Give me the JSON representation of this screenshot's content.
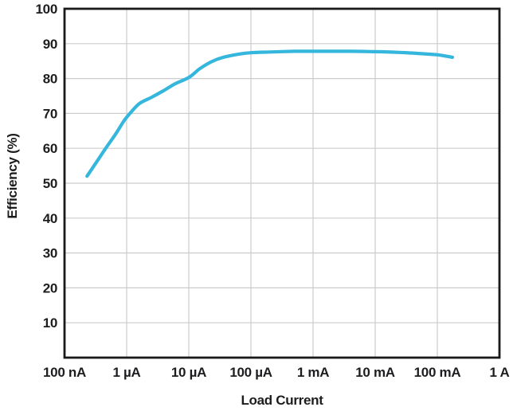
{
  "chart": {
    "frame_color": "#1a1a1a",
    "grid_color": "#cccccc",
    "line_color": "#35b6dd",
    "text_color": "#1d1d1f",
    "background_color": "#ffffff"
  },
  "chart_data": {
    "type": "line",
    "title": "",
    "xlabel": "Load Current",
    "ylabel": "Efficiency (%)",
    "x_scale": "log",
    "xlim": [
      1e-07,
      1
    ],
    "ylim": [
      0,
      100
    ],
    "grid": true,
    "legend_position": "none",
    "x_tick_values": [
      1e-07,
      1e-06,
      1e-05,
      0.0001,
      0.001,
      0.01,
      0.1,
      1
    ],
    "x_tick_labels": [
      "100 nA",
      "1 µA",
      "10 µA",
      "100 µA",
      "1 mA",
      "10 mA",
      "100 mA",
      "1 A"
    ],
    "y_tick_values": [
      100,
      90,
      80,
      70,
      60,
      50,
      40,
      30,
      20,
      10
    ],
    "y_tick_labels": [
      "100",
      "90",
      "80",
      "70",
      "60",
      "50",
      "40",
      "30",
      "20",
      "10"
    ],
    "series": [
      {
        "name": "Efficiency",
        "color": "#35b6dd",
        "x": [
          2.3e-07,
          3.2e-07,
          4.6e-07,
          6.6e-07,
          9e-07,
          1.13e-06,
          1.6e-06,
          2.5e-06,
          4e-06,
          6e-06,
          1e-05,
          1.5e-05,
          2.3e-05,
          3.6e-05,
          6.4e-05,
          0.0001,
          0.0002,
          0.0005,
          0.001,
          0.004,
          0.01,
          0.024,
          0.049,
          0.1,
          0.14,
          0.175
        ],
        "y": [
          52,
          55.8,
          60,
          64,
          67.8,
          70,
          72.8,
          74.6,
          76.6,
          78.5,
          80.3,
          82.8,
          84.8,
          86.1,
          87,
          87.4,
          87.6,
          87.8,
          87.8,
          87.8,
          87.7,
          87.5,
          87.2,
          86.8,
          86.4,
          86.1
        ]
      }
    ]
  }
}
